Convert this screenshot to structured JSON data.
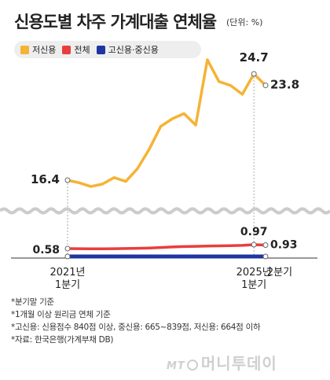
{
  "title": "신용도별 차주 가계대출 연체율",
  "unit": "(단위: %)",
  "legend": [
    {
      "label": "저신용",
      "color": "#f5b335"
    },
    {
      "label": "전체",
      "color": "#e83e3e"
    },
    {
      "label": "고신용·중신용",
      "color": "#1f36a0"
    }
  ],
  "notes": [
    "*분기말 기준",
    "*1개월 이상 원리금 연체 기준",
    "*고신용: 신용점수 840점 이상, 중신용: 665~839점, 저신용: 664점 이하",
    "*자료: 한국은행(가계부채 DB)"
  ],
  "brand": {
    "prefix": "MT",
    "name": "머니투데이"
  },
  "chart_data": {
    "type": "line",
    "x_ticks": [
      {
        "line1": "2021년",
        "line2": "1분기"
      },
      {
        "line1": "2025년",
        "line2": "1분기"
      },
      {
        "line1": "2분기",
        "line2": ""
      }
    ],
    "series": [
      {
        "name": "저신용",
        "color": "#f5b335",
        "values": [
          16.4,
          16.2,
          15.9,
          16.1,
          16.6,
          16.3,
          17.3,
          18.8,
          20.6,
          21.2,
          21.6,
          20.7,
          25.8,
          24.1,
          23.8,
          23.1,
          24.7,
          23.8
        ],
        "labels": [
          {
            "index": 0,
            "text": "16.4"
          },
          {
            "index": 16,
            "text": "24.7"
          },
          {
            "index": 17,
            "text": "23.8"
          }
        ]
      },
      {
        "name": "전체",
        "color": "#e83e3e",
        "values": [
          0.58,
          0.57,
          0.56,
          0.56,
          0.57,
          0.59,
          0.61,
          0.64,
          0.69,
          0.74,
          0.78,
          0.81,
          0.83,
          0.85,
          0.88,
          0.9,
          0.97,
          0.93
        ],
        "labels": [
          {
            "index": 0,
            "text": "0.58"
          },
          {
            "index": 16,
            "text": "0.97"
          },
          {
            "index": 17,
            "text": "0.93"
          }
        ]
      },
      {
        "name": "고신용·중신용",
        "color": "#1f36a0",
        "values": [
          0.35,
          0.35,
          0.35,
          0.35,
          0.35,
          0.35,
          0.35,
          0.35,
          0.35,
          0.35,
          0.35,
          0.35,
          0.35,
          0.35,
          0.35,
          0.35,
          0.35,
          0.35
        ],
        "labels": []
      }
    ]
  }
}
